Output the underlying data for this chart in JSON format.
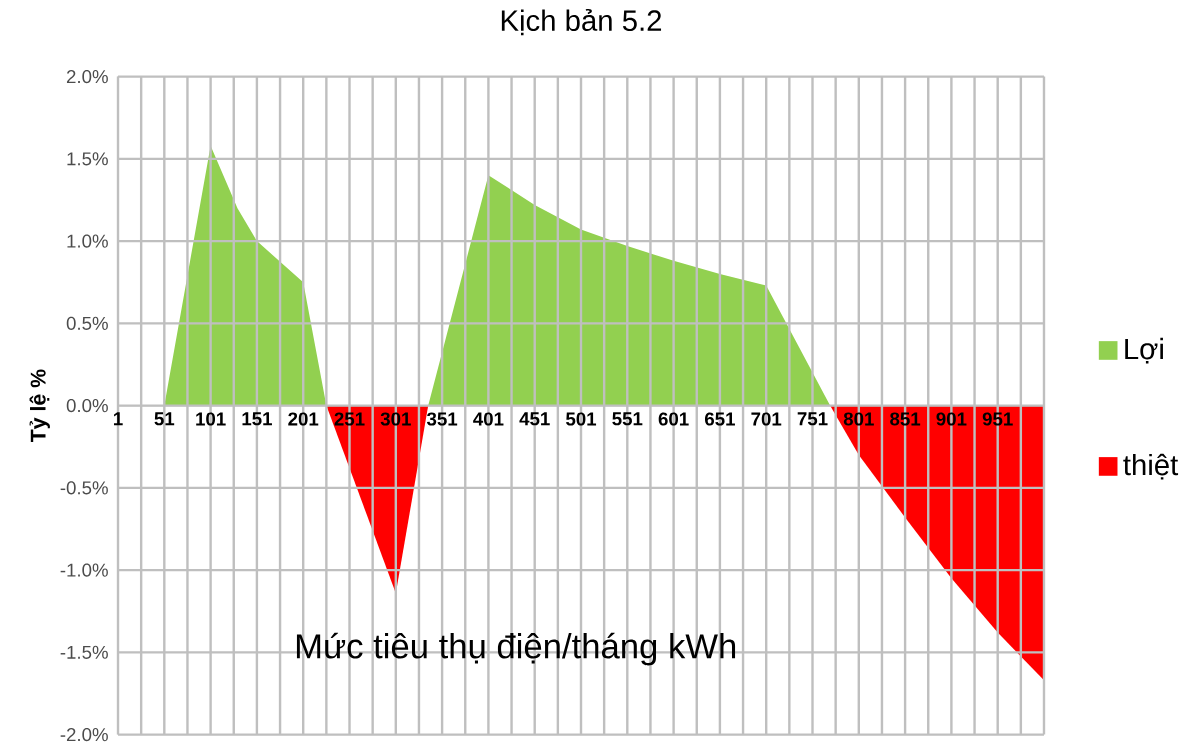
{
  "chart_data": {
    "type": "area",
    "title": "Kịch bản 5.2",
    "xlabel": "Mức tiêu thụ điện/tháng kWh",
    "ylabel": "Tỷ lệ %",
    "xlim": [
      1,
      1001
    ],
    "xticks": [
      1,
      51,
      101,
      151,
      201,
      251,
      301,
      351,
      401,
      451,
      501,
      551,
      601,
      651,
      701,
      751,
      801,
      851,
      901,
      951,
      {
        "value": 1001,
        "label": null
      }
    ],
    "ylim": [
      -2,
      2
    ],
    "yticks": [
      {
        "value": -2,
        "label": "-2.0%"
      },
      {
        "value": -1.5,
        "label": "-1.5%"
      },
      {
        "value": -1,
        "label": "-1.0%"
      },
      {
        "value": -0.5,
        "label": "-0.5%"
      },
      {
        "value": 0,
        "label": "0.0%"
      },
      {
        "value": 0.5,
        "label": "0.5%"
      },
      {
        "value": 1,
        "label": "1.0%"
      },
      {
        "value": 1.5,
        "label": "1.5%"
      },
      {
        "value": 2,
        "label": "2.0%"
      }
    ],
    "grid": true,
    "legend": "right",
    "series": [
      {
        "name": "Lợi",
        "color": "#92d050",
        "x": [
          51,
          101,
          130,
          151,
          201,
          226,
          281,
          336,
          401,
          451,
          501,
          551,
          601,
          651,
          701,
          770
        ],
        "values": [
          0,
          1.58,
          1.2,
          1.0,
          0.75,
          0,
          null,
          0,
          1.4,
          1.22,
          1.07,
          0.97,
          0.88,
          0.8,
          0.73,
          0
        ]
      },
      {
        "name": "thiệt",
        "color": "#ff0000",
        "x": [
          226,
          301,
          336,
          611,
          770,
          801,
          851,
          901,
          951,
          1001
        ],
        "values": [
          0,
          -1.14,
          0,
          null,
          0,
          -0.3,
          -0.68,
          -1.05,
          -1.38,
          -1.67
        ]
      }
    ]
  }
}
